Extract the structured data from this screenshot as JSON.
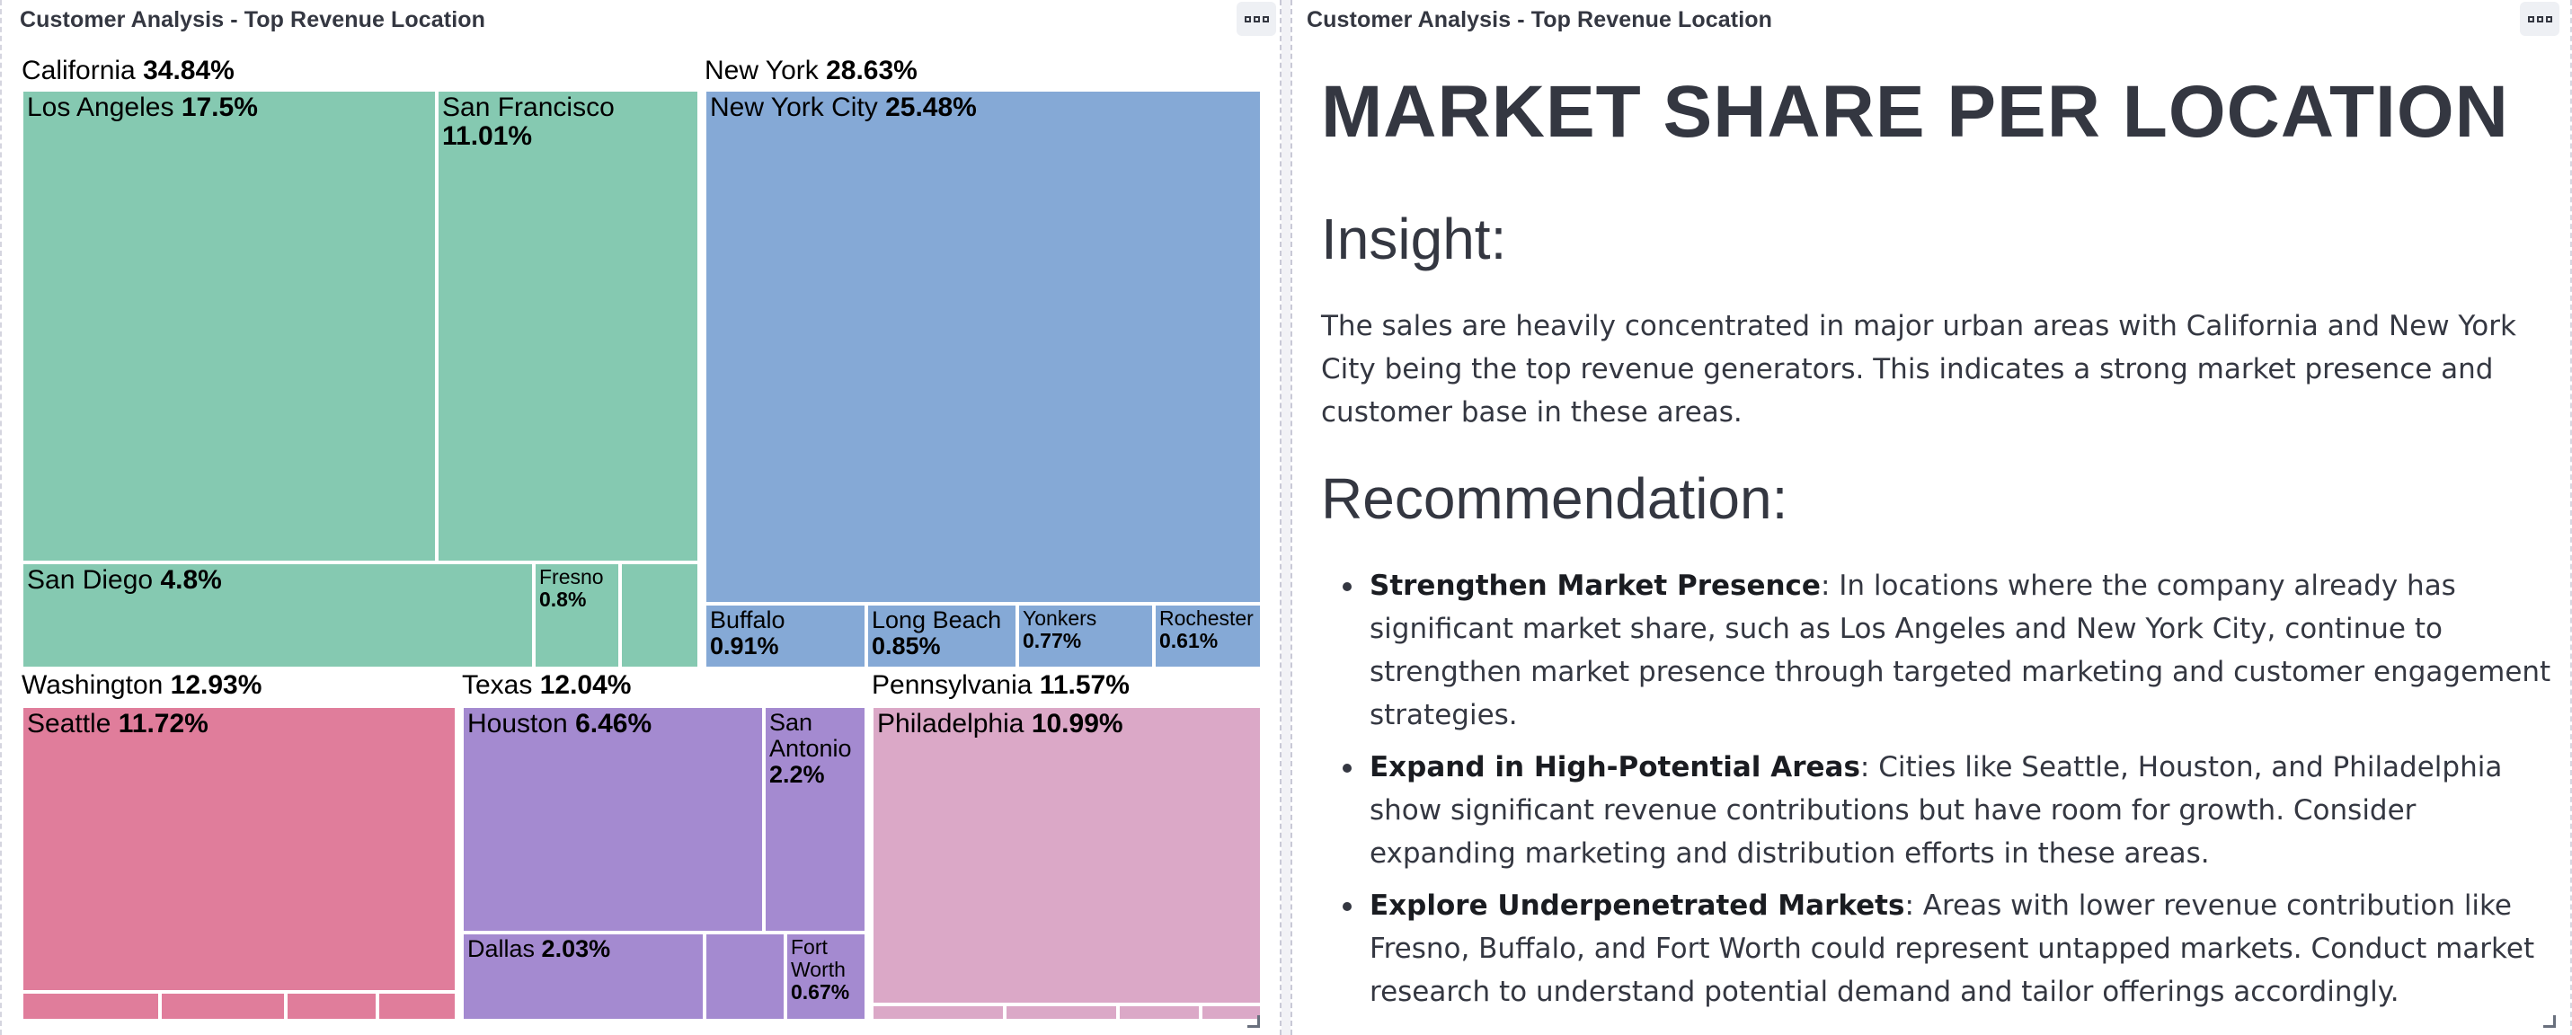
{
  "left_panel": {
    "title": "Customer Analysis - Top Revenue Location",
    "groups": {
      "california": {
        "name": "California",
        "pct": "34.84%"
      },
      "new_york": {
        "name": "New York",
        "pct": "28.63%"
      },
      "washington": {
        "name": "Washington",
        "pct": "12.93%"
      },
      "texas": {
        "name": "Texas",
        "pct": "12.04%"
      },
      "pennsylvania": {
        "name": "Pennsylvania",
        "pct": "11.57%"
      }
    },
    "tiles": {
      "los_angeles": {
        "name": "Los Angeles",
        "pct": "17.5%"
      },
      "san_francisco": {
        "name": "San Francisco",
        "pct": "11.01%"
      },
      "san_diego": {
        "name": "San Diego",
        "pct": "4.8%"
      },
      "fresno": {
        "name": "Fresno",
        "pct": "0.8%"
      },
      "new_york_city": {
        "name": "New York City",
        "pct": "25.48%"
      },
      "buffalo": {
        "name": "Buffalo",
        "pct": "0.91%"
      },
      "long_beach": {
        "name": "Long Beach",
        "pct": "0.85%"
      },
      "yonkers": {
        "name": "Yonkers",
        "pct": "0.77%"
      },
      "rochester": {
        "name": "Rochester",
        "pct": "0.61%"
      },
      "seattle": {
        "name": "Seattle",
        "pct": "11.72%"
      },
      "houston": {
        "name": "Houston",
        "pct": "6.46%"
      },
      "san_antonio": {
        "name": "San Antonio",
        "pct": "2.2%"
      },
      "dallas": {
        "name": "Dallas",
        "pct": "2.03%"
      },
      "fort_worth": {
        "name": "Fort Worth",
        "pct": "0.67%"
      },
      "philadelphia": {
        "name": "Philadelphia",
        "pct": "10.99%"
      }
    },
    "colors": {
      "california": "#85c9b1",
      "new_york": "#85a9d6",
      "washington": "#e07d9b",
      "texas": "#a48ad0",
      "pennsylvania": "#dba8c7"
    }
  },
  "right_panel": {
    "title": "Customer Analysis - Top Revenue Location",
    "heading": "MARKET SHARE PER LOCATION",
    "insight_heading": "Insight:",
    "insight_text": "The sales are heavily concentrated in major urban areas with California and New York City being the top revenue generators. This indicates a strong market presence and customer base in these areas.",
    "recommendation_heading": "Recommendation:",
    "recommendations": [
      {
        "title": "Strengthen Market Presence",
        "text": ": In locations where the company already has significant market share, such as Los Angeles and New York City, continue to strengthen market presence through targeted marketing and customer engagement strategies."
      },
      {
        "title": "Expand in High-Potential Areas",
        "text": ": Cities like Seattle, Houston, and Philadelphia show significant revenue contributions but have room for growth. Consider expanding marketing and distribution efforts in these areas."
      },
      {
        "title": "Explore Underpenetrated Markets",
        "text": ": Areas with lower revenue contribution like Fresno, Buffalo, and Fort Worth could represent untapped markets. Conduct market research to understand potential demand and tailor offerings accordingly."
      }
    ]
  }
}
